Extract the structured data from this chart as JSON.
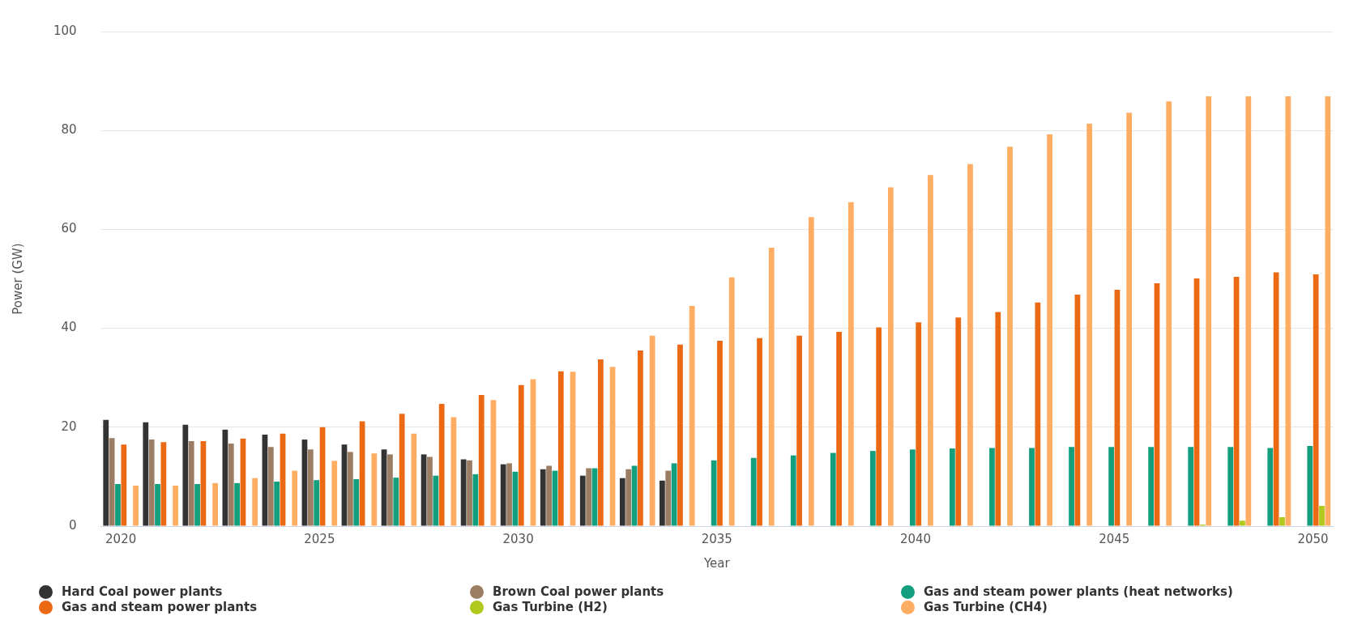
{
  "chart_data": {
    "type": "bar",
    "xlabel": "Year",
    "ylabel": "Power (GW)",
    "categories": [
      "2020",
      null,
      null,
      null,
      null,
      "2025",
      null,
      null,
      null,
      null,
      "2030",
      null,
      null,
      null,
      null,
      "2035",
      null,
      null,
      null,
      null,
      "2040",
      null,
      null,
      null,
      null,
      "2045",
      null,
      null,
      null,
      null,
      "2050"
    ],
    "series": [
      {
        "name": "Hard Coal power plants",
        "color": "#333333",
        "values": [
          21.5,
          21,
          20.5,
          19.5,
          18.5,
          17.5,
          16.5,
          15.5,
          14.5,
          13.5,
          12.5,
          11.5,
          10.2,
          9.7,
          9.2,
          null,
          null,
          null,
          null,
          null,
          null,
          null,
          null,
          null,
          null,
          null,
          null,
          null,
          null,
          null,
          null
        ]
      },
      {
        "name": "Brown Coal power plants",
        "color": "#9a7d63",
        "values": [
          17.8,
          17.5,
          17.2,
          16.7,
          16,
          15.5,
          15,
          14.5,
          14,
          13.3,
          12.7,
          12.2,
          11.7,
          11.5,
          11.2,
          null,
          null,
          null,
          null,
          null,
          null,
          null,
          null,
          null,
          null,
          null,
          null,
          null,
          null,
          null,
          null
        ]
      },
      {
        "name": "Gas and steam power plants (heat networks)",
        "color": "#139e7d",
        "values": [
          8.5,
          8.5,
          8.5,
          8.7,
          9,
          9.3,
          9.5,
          9.8,
          10.2,
          10.5,
          11,
          11.2,
          11.7,
          12.2,
          12.7,
          13.3,
          13.8,
          14.3,
          14.8,
          15.2,
          15.5,
          15.7,
          15.8,
          15.8,
          16,
          16,
          16,
          16,
          16,
          15.8,
          16.2
        ]
      },
      {
        "name": "Gas and steam power plants",
        "color": "#ec6913",
        "values": [
          16.5,
          17,
          17.2,
          17.7,
          18.7,
          20,
          21.2,
          22.7,
          24.7,
          26.5,
          28.5,
          31.3,
          33.7,
          35.5,
          36.7,
          37.5,
          38,
          38.5,
          39.3,
          40.2,
          41.2,
          42.2,
          43.3,
          45.2,
          46.8,
          47.8,
          49.1,
          50.1,
          50.4,
          51.3,
          50.9
        ]
      },
      {
        "name": "Gas Turbine (H2)",
        "color": "#b0c91c",
        "values": [
          null,
          null,
          null,
          null,
          null,
          null,
          null,
          null,
          null,
          null,
          null,
          null,
          null,
          null,
          null,
          null,
          null,
          null,
          null,
          null,
          null,
          null,
          null,
          null,
          null,
          null,
          null,
          0.3,
          1.1,
          1.8,
          4.1
        ]
      },
      {
        "name": "Gas Turbine (CH4)",
        "color": "#ffad62",
        "values": [
          8.2,
          8.2,
          8.7,
          9.7,
          11.2,
          13.2,
          14.7,
          18.7,
          22,
          25.5,
          29.7,
          31.2,
          32.2,
          38.5,
          44.5,
          50.3,
          56.3,
          62.5,
          65.5,
          68.5,
          71,
          73.2,
          76.7,
          79.2,
          81.4,
          83.6,
          85.9,
          86.9,
          86.9,
          86.9,
          86.9
        ]
      }
    ],
    "ylim": [
      0,
      100
    ],
    "yticks": [
      0,
      20,
      40,
      60,
      80,
      100
    ],
    "grid": "y",
    "legend": "bottom"
  }
}
